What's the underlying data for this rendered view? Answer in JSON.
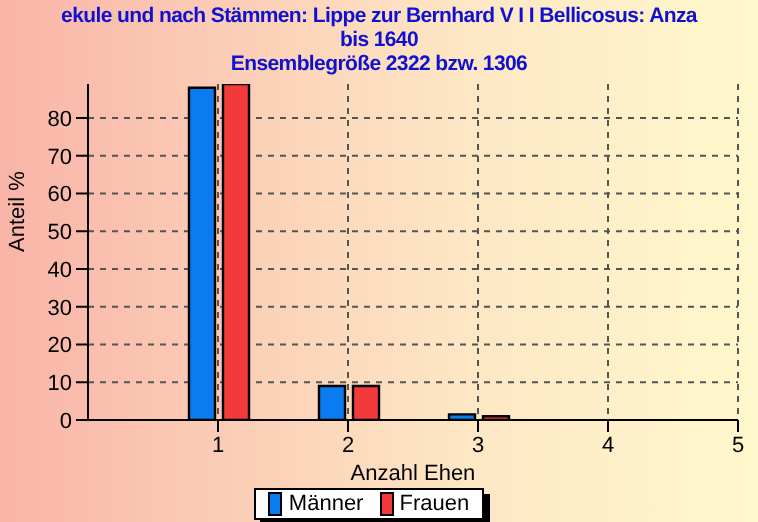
{
  "chart_data": {
    "type": "bar",
    "title": "ekule und nach Stämmen: Lippe zur Bernhard V I I Bellicosus: Anza",
    "subtitle": "bis 1640\nEnsemblegröße 2322 bzw. 1306",
    "xlabel": "Anzahl Ehen",
    "ylabel": "Anteil %",
    "x": [
      1,
      2,
      3,
      4,
      5
    ],
    "series": [
      {
        "name": "Männer",
        "color": "#0a7cf0",
        "values": [
          88,
          9,
          1.5,
          0,
          null
        ]
      },
      {
        "name": "Frauen",
        "color": "#f23a3a",
        "values": [
          89,
          9,
          1,
          null,
          0
        ]
      }
    ],
    "xlim": [
      0,
      5
    ],
    "xticks": [
      1,
      2,
      3,
      4,
      5
    ],
    "ylim": [
      0,
      89
    ],
    "yticks": [
      0,
      10,
      20,
      30,
      40,
      50,
      60,
      70,
      80
    ],
    "grid": true,
    "legend": "bottom"
  }
}
